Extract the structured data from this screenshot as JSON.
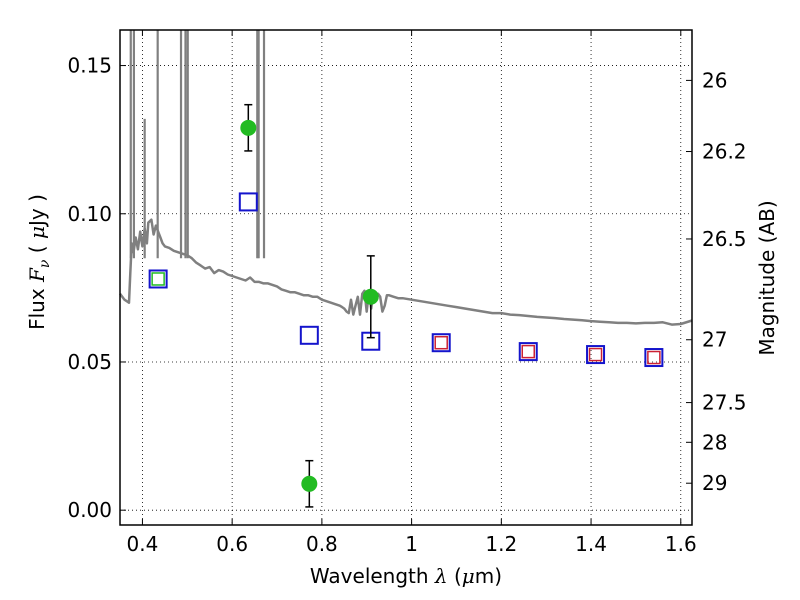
{
  "chart_data": {
    "type": "scatter",
    "xlabel_parts": [
      "Wavelength  ",
      "λ",
      " (",
      "μ",
      "m)"
    ],
    "ylabel_parts": [
      "Flux  ",
      "F",
      "ν",
      "  ( ",
      "μ",
      "Jy )"
    ],
    "ylabel_right": "Magnitude (AB)",
    "xlim": [
      0.35,
      1.625
    ],
    "ylim": [
      -0.005,
      0.162
    ],
    "grid": true,
    "x_ticks": [
      {
        "value": 0.4,
        "label": "0.4"
      },
      {
        "value": 0.6,
        "label": "0.6"
      },
      {
        "value": 0.8,
        "label": "0.8"
      },
      {
        "value": 1.0,
        "label": "1"
      },
      {
        "value": 1.2,
        "label": "1.2"
      },
      {
        "value": 1.4,
        "label": "1.4"
      },
      {
        "value": 1.6,
        "label": "1.6"
      }
    ],
    "y_ticks": [
      {
        "value": 0.0,
        "label": "0.00"
      },
      {
        "value": 0.05,
        "label": "0.05"
      },
      {
        "value": 0.1,
        "label": "0.10"
      },
      {
        "value": 0.15,
        "label": "0.15"
      }
    ],
    "right_ticks": [
      {
        "flux": 0.145,
        "label": "26"
      },
      {
        "flux": 0.121,
        "label": "26.2"
      },
      {
        "flux": 0.0915,
        "label": "26.5"
      },
      {
        "flux": 0.0575,
        "label": "27"
      },
      {
        "flux": 0.0363,
        "label": "27.5"
      },
      {
        "flux": 0.0229,
        "label": "28"
      },
      {
        "flux": 0.0091,
        "label": "29"
      }
    ],
    "observed": {
      "color": "#22bb22",
      "points": [
        {
          "x": 0.636,
          "y": 0.129,
          "err": 0.0078
        },
        {
          "x": 0.772,
          "y": 0.0089,
          "err": 0.0078
        },
        {
          "x": 0.909,
          "y": 0.072,
          "err": 0.0138
        }
      ]
    },
    "model_points": {
      "color": "#1414cc",
      "points": [
        {
          "x": 0.435,
          "y": 0.078
        },
        {
          "x": 0.636,
          "y": 0.104
        },
        {
          "x": 0.772,
          "y": 0.059
        },
        {
          "x": 0.909,
          "y": 0.057
        },
        {
          "x": 1.066,
          "y": 0.0565
        },
        {
          "x": 1.26,
          "y": 0.0535
        },
        {
          "x": 1.41,
          "y": 0.0525
        },
        {
          "x": 1.54,
          "y": 0.0515
        }
      ]
    },
    "inner_green": {
      "color": "#22bb22",
      "points": [
        {
          "x": 0.435,
          "y": 0.078
        }
      ]
    },
    "inner_red": {
      "color": "#cc2233",
      "points": [
        {
          "x": 1.066,
          "y": 0.0565
        },
        {
          "x": 1.26,
          "y": 0.0535
        },
        {
          "x": 1.41,
          "y": 0.0525
        },
        {
          "x": 1.54,
          "y": 0.0515
        }
      ]
    },
    "sed_color": "#808080",
    "sed": [
      [
        0.35,
        0.073
      ],
      [
        0.36,
        0.071
      ],
      [
        0.37,
        0.07
      ],
      [
        0.373,
        0.08
      ],
      [
        0.376,
        0.09
      ],
      [
        0.38,
        0.087
      ],
      [
        0.385,
        0.092
      ],
      [
        0.39,
        0.088
      ],
      [
        0.395,
        0.094
      ],
      [
        0.4,
        0.089
      ],
      [
        0.405,
        0.095
      ],
      [
        0.41,
        0.09
      ],
      [
        0.413,
        0.097
      ],
      [
        0.42,
        0.098
      ],
      [
        0.425,
        0.093
      ],
      [
        0.43,
        0.096
      ],
      [
        0.435,
        0.094
      ],
      [
        0.44,
        0.092
      ],
      [
        0.445,
        0.09
      ],
      [
        0.45,
        0.089
      ],
      [
        0.46,
        0.0885
      ],
      [
        0.47,
        0.0875
      ],
      [
        0.48,
        0.087
      ],
      [
        0.49,
        0.0865
      ],
      [
        0.5,
        0.086
      ],
      [
        0.51,
        0.085
      ],
      [
        0.52,
        0.0835
      ],
      [
        0.53,
        0.0825
      ],
      [
        0.54,
        0.0815
      ],
      [
        0.55,
        0.082
      ],
      [
        0.56,
        0.08
      ],
      [
        0.57,
        0.081
      ],
      [
        0.58,
        0.0805
      ],
      [
        0.59,
        0.0795
      ],
      [
        0.6,
        0.079
      ],
      [
        0.61,
        0.0785
      ],
      [
        0.62,
        0.078
      ],
      [
        0.63,
        0.0775
      ],
      [
        0.64,
        0.0785
      ],
      [
        0.65,
        0.077
      ],
      [
        0.66,
        0.077
      ],
      [
        0.67,
        0.0765
      ],
      [
        0.68,
        0.0765
      ],
      [
        0.69,
        0.076
      ],
      [
        0.7,
        0.0755
      ],
      [
        0.71,
        0.0745
      ],
      [
        0.72,
        0.074
      ],
      [
        0.73,
        0.0735
      ],
      [
        0.74,
        0.0735
      ],
      [
        0.75,
        0.073
      ],
      [
        0.76,
        0.0725
      ],
      [
        0.77,
        0.0725
      ],
      [
        0.78,
        0.072
      ],
      [
        0.79,
        0.072
      ],
      [
        0.8,
        0.071
      ],
      [
        0.81,
        0.0705
      ],
      [
        0.82,
        0.07
      ],
      [
        0.83,
        0.0695
      ],
      [
        0.84,
        0.069
      ],
      [
        0.845,
        0.0685
      ],
      [
        0.85,
        0.068
      ],
      [
        0.855,
        0.067
      ],
      [
        0.86,
        0.0665
      ],
      [
        0.865,
        0.071
      ],
      [
        0.87,
        0.066
      ],
      [
        0.875,
        0.069
      ],
      [
        0.88,
        0.072
      ],
      [
        0.885,
        0.066
      ],
      [
        0.89,
        0.073
      ],
      [
        0.895,
        0.074
      ],
      [
        0.9,
        0.067
      ],
      [
        0.905,
        0.074
      ],
      [
        0.91,
        0.068
      ],
      [
        0.915,
        0.074
      ],
      [
        0.92,
        0.071
      ],
      [
        0.925,
        0.073
      ],
      [
        0.93,
        0.072
      ],
      [
        0.935,
        0.067
      ],
      [
        0.94,
        0.069
      ],
      [
        0.945,
        0.0725
      ],
      [
        0.95,
        0.0725
      ],
      [
        0.96,
        0.072
      ],
      [
        0.97,
        0.0715
      ],
      [
        0.98,
        0.0715
      ],
      [
        1.0,
        0.071
      ],
      [
        1.02,
        0.0705
      ],
      [
        1.04,
        0.07
      ],
      [
        1.06,
        0.0695
      ],
      [
        1.08,
        0.069
      ],
      [
        1.1,
        0.0685
      ],
      [
        1.12,
        0.068
      ],
      [
        1.14,
        0.0675
      ],
      [
        1.16,
        0.067
      ],
      [
        1.18,
        0.0665
      ],
      [
        1.2,
        0.0665
      ],
      [
        1.22,
        0.066
      ],
      [
        1.24,
        0.0658
      ],
      [
        1.26,
        0.0655
      ],
      [
        1.28,
        0.0652
      ],
      [
        1.3,
        0.065
      ],
      [
        1.32,
        0.0648
      ],
      [
        1.34,
        0.0645
      ],
      [
        1.36,
        0.0643
      ],
      [
        1.38,
        0.0641
      ],
      [
        1.4,
        0.0638
      ],
      [
        1.42,
        0.0636
      ],
      [
        1.44,
        0.0634
      ],
      [
        1.46,
        0.0632
      ],
      [
        1.48,
        0.0632
      ],
      [
        1.5,
        0.063
      ],
      [
        1.52,
        0.0632
      ],
      [
        1.54,
        0.0632
      ],
      [
        1.56,
        0.0634
      ],
      [
        1.58,
        0.0626
      ],
      [
        1.6,
        0.0628
      ],
      [
        1.625,
        0.064
      ]
    ],
    "sed_lines": [
      {
        "x": 0.374,
        "y": 0.162
      },
      {
        "x": 0.381,
        "y": 0.162
      },
      {
        "x": 0.405,
        "y": 0.132
      },
      {
        "x": 0.434,
        "y": 0.162
      },
      {
        "x": 0.486,
        "y": 0.162
      },
      {
        "x": 0.496,
        "y": 0.162
      },
      {
        "x": 0.501,
        "y": 0.162
      },
      {
        "x": 0.656,
        "y": 0.162
      },
      {
        "x": 0.659,
        "y": 0.162
      },
      {
        "x": 0.671,
        "y": 0.162
      }
    ]
  }
}
